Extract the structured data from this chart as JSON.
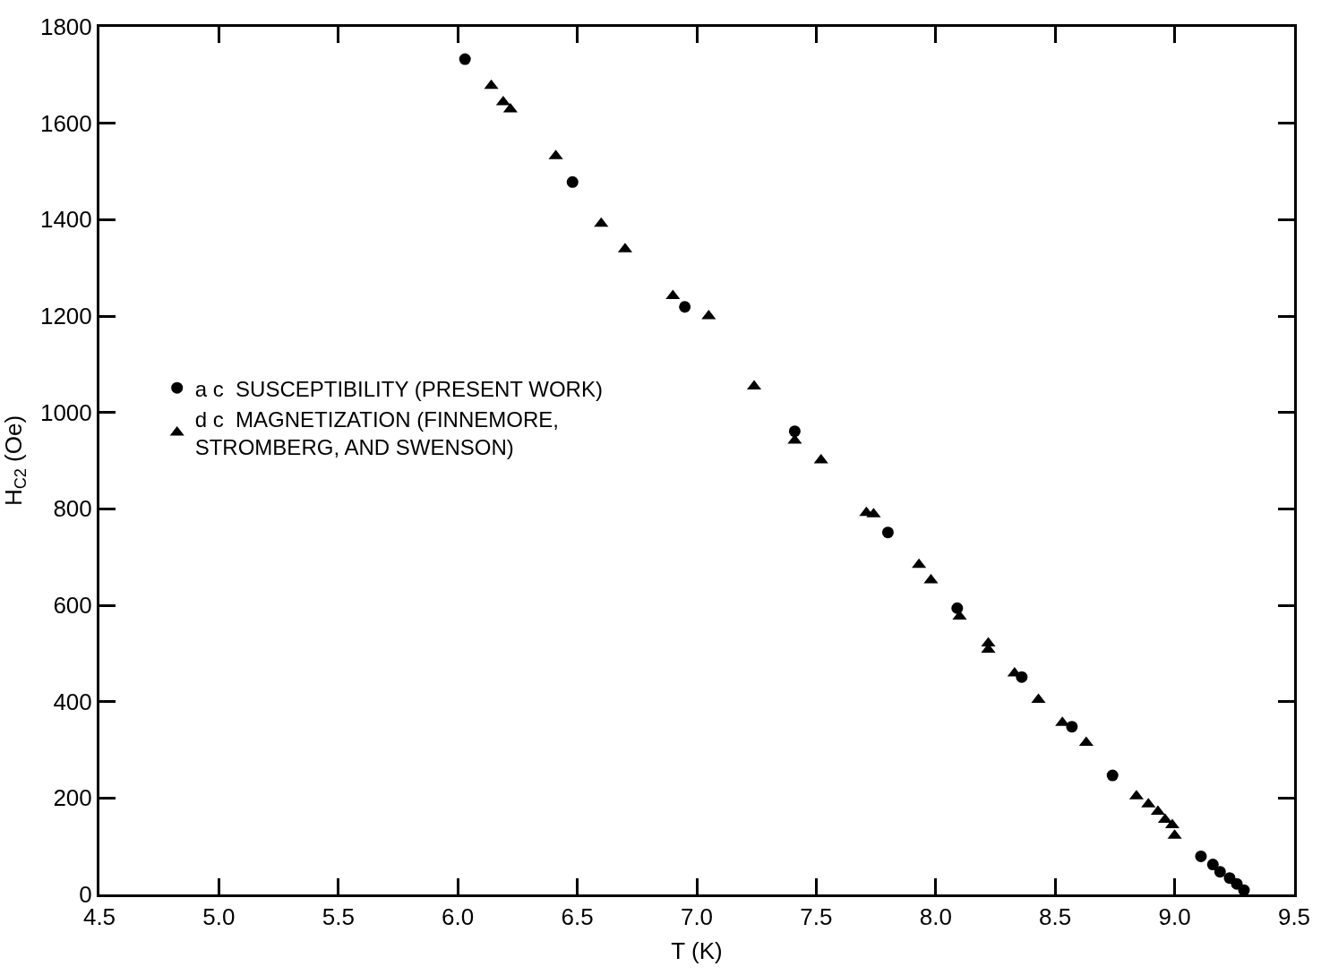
{
  "chart_data": {
    "type": "scatter",
    "xlabel": "T (K)",
    "ylabel": "H$_{C2}$ (Oe)",
    "xlim": [
      4.5,
      9.5
    ],
    "ylim": [
      0,
      1800
    ],
    "xticks": [
      4.5,
      {
        "value": 5,
        "label": "5.0"
      },
      5.5,
      {
        "value": 6,
        "label": "6.0"
      },
      6.5,
      {
        "value": 7,
        "label": "7.0"
      },
      7.5,
      {
        "value": 8,
        "label": "8.0"
      },
      8.5,
      {
        "value": 9,
        "label": "9.0"
      },
      9.5
    ],
    "yticks": [
      0,
      200,
      400,
      600,
      800,
      1000,
      1200,
      1400,
      1600,
      1800
    ],
    "legend": "left",
    "series": [
      {
        "name": "a c  SUSCEPTIBILITY (PRESENT WORK)",
        "color": "#000000",
        "marker": "circle",
        "x": [
          6.03,
          6.48,
          6.95,
          7.41,
          7.8,
          8.09,
          8.36,
          8.57,
          8.74,
          9.11,
          9.16,
          9.19,
          9.23,
          9.26,
          9.29
        ],
        "values": [
          1733,
          1478,
          1219,
          961,
          751,
          594,
          451,
          348,
          247,
          79,
          62,
          47,
          34,
          22,
          9
        ]
      },
      {
        "name": "d c  MAGNETIZATION (FINNEMORE, STROMBERG, AND SWENSON)",
        "color": "#000000",
        "marker": "triangle",
        "x": [
          6.14,
          6.19,
          6.22,
          6.41,
          6.6,
          6.7,
          6.9,
          7.05,
          7.24,
          7.41,
          7.52,
          7.71,
          7.74,
          7.93,
          7.98,
          8.1,
          8.22,
          8.22,
          8.33,
          8.43,
          8.53,
          8.63,
          8.84,
          8.89,
          8.93,
          8.96,
          8.99,
          9.0
        ],
        "values": [
          1678,
          1644,
          1629,
          1532,
          1392,
          1339,
          1242,
          1200,
          1054,
          942,
          901,
          792,
          789,
          684,
          652,
          577,
          521,
          508,
          459,
          404,
          356,
          315,
          204,
          187,
          172,
          155,
          144,
          122
        ]
      }
    ]
  }
}
